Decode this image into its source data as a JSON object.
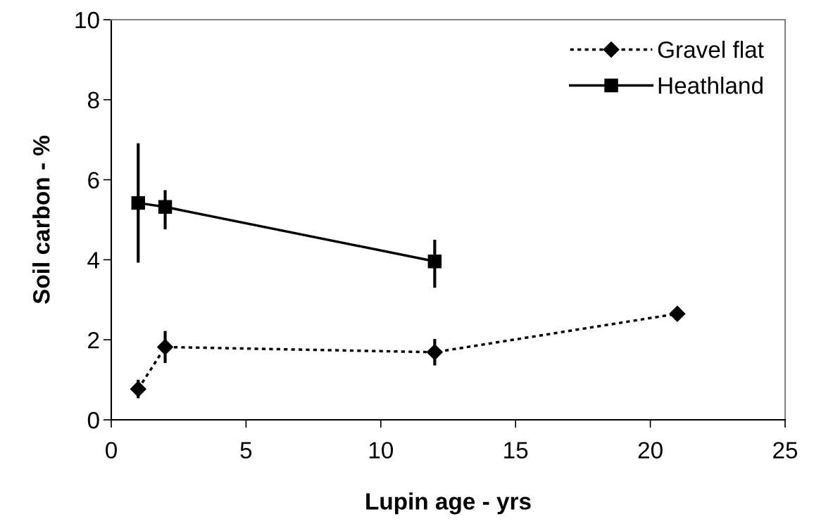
{
  "chart_data": {
    "type": "line",
    "xlabel": "Lupin age - yrs",
    "ylabel": "Soil carbon - %",
    "xlim": [
      0,
      25
    ],
    "xticks": [
      0,
      5,
      10,
      15,
      20,
      25
    ],
    "ylim": [
      0,
      10
    ],
    "yticks": [
      0,
      2,
      4,
      6,
      8,
      10
    ],
    "grid": false,
    "legend": "top right",
    "series": [
      {
        "name": "Gravel flat",
        "color": "#000000",
        "marker": "diamond",
        "line_style": "dotted",
        "x": [
          1,
          2,
          12,
          21
        ],
        "values": [
          0.77,
          1.82,
          1.69,
          2.65
        ],
        "errors": [
          0.23,
          0.4,
          0.33,
          null
        ]
      },
      {
        "name": "Heathland",
        "color": "#000000",
        "marker": "square",
        "line_style": "solid",
        "x": [
          1,
          2,
          12
        ],
        "values": [
          5.42,
          5.32,
          3.96
        ],
        "errors": [
          [
            3.93,
            6.91
          ],
          [
            4.76,
            5.74
          ],
          [
            3.3,
            4.5
          ]
        ]
      }
    ]
  }
}
